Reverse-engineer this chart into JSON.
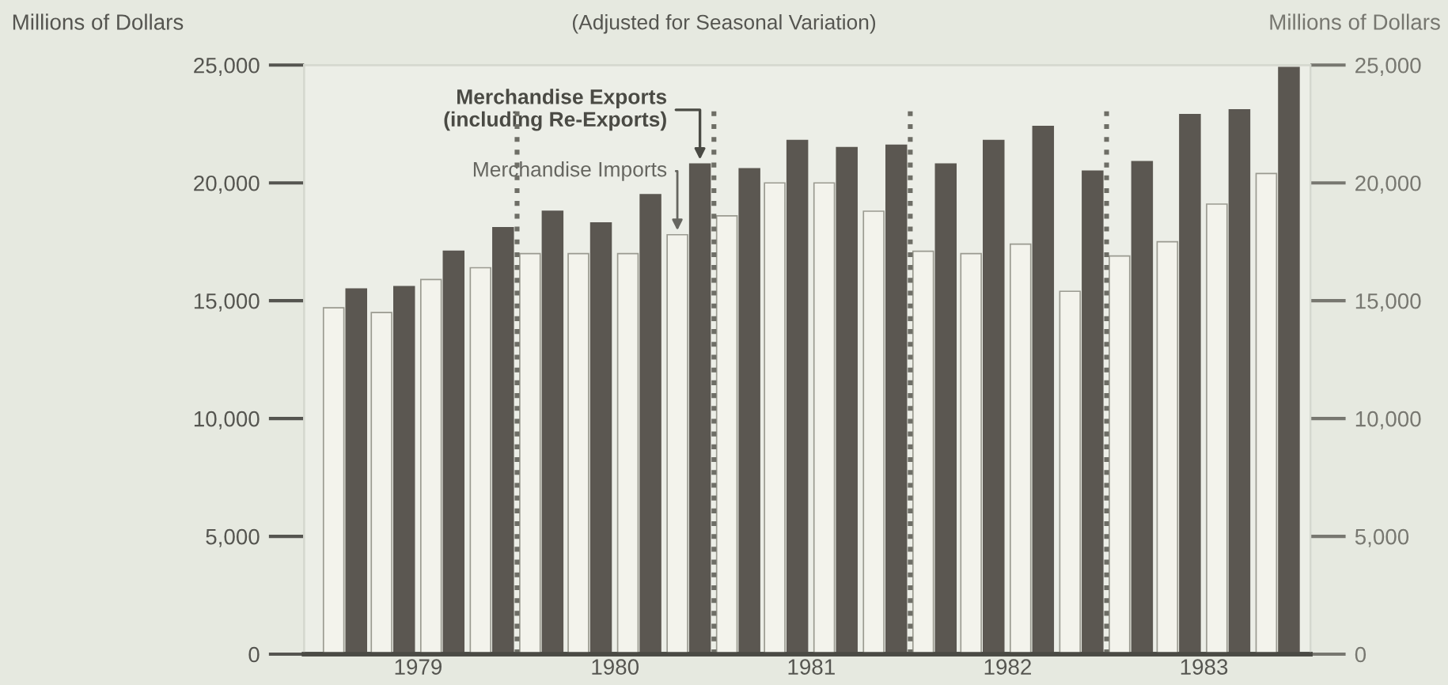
{
  "chart_data": {
    "type": "bar",
    "subtitle": "(Adjusted for Seasonal Variation)",
    "ylabel": "Millions of Dollars",
    "y2label": "Millions of Dollars",
    "x": [
      "1979-02-15",
      "1979-05-15",
      "1979-08-15",
      "1979-11-15",
      "1980-02-15",
      "1980-05-15",
      "1980-08-15",
      "1980-11-15",
      "1981-02-15",
      "1981-05-15",
      "1981-08-15",
      "1981-11-15",
      "1982-02-15",
      "1982-05-15",
      "1982-08-15",
      "1982-11-15",
      "1983-02-15",
      "1983-05-15",
      "1983-08-15",
      "1983-11-15"
    ],
    "series": [
      {
        "name": "Merchandise Imports",
        "color": "#f3f3ec",
        "values": [
          14700,
          14500,
          15900,
          16400,
          17000,
          17000,
          17000,
          17800,
          18600,
          20000,
          20000,
          18800,
          17100,
          17000,
          17400,
          15400,
          16900,
          17500,
          19100,
          20400
        ]
      },
      {
        "name": "Merchandise Exports (including Re-Exports)",
        "color": "#5b5751",
        "values": [
          15500,
          15600,
          17100,
          18100,
          18800,
          18300,
          19500,
          20800,
          20600,
          21800,
          21500,
          21600,
          20800,
          21800,
          22400,
          20500,
          20900,
          22900,
          23100,
          24900
        ]
      }
    ],
    "xlim": [
      "1978-12-01",
      "1984-01-15"
    ],
    "xticks": [
      {
        "value": "1979-07-01",
        "label": "1979"
      },
      {
        "value": "1980-07-01",
        "label": "1980"
      },
      {
        "value": "1981-07-01",
        "label": "1981"
      },
      {
        "value": "1982-07-01",
        "label": "1982"
      },
      {
        "value": "1983-07-01",
        "label": "1983"
      }
    ],
    "ylim": [
      0,
      25000
    ],
    "yticks": [
      {
        "value": 0,
        "label": "0"
      },
      {
        "value": 5000,
        "label": "5,000"
      },
      {
        "value": 10000,
        "label": "10,000"
      },
      {
        "value": 15000,
        "label": "15,000"
      },
      {
        "value": 20000,
        "label": "20,000"
      },
      {
        "value": 25000,
        "label": "25,000"
      }
    ],
    "y2lim": [
      0,
      25000
    ],
    "y2ticks": [
      {
        "value": 0,
        "label": "0"
      },
      {
        "value": 5000,
        "label": "5,000"
      },
      {
        "value": 10000,
        "label": "10,000"
      },
      {
        "value": 15000,
        "label": "15,000"
      },
      {
        "value": 20000,
        "label": "20,000"
      },
      {
        "value": 25000,
        "label": "25,000"
      }
    ],
    "ref_lines": [
      {
        "axis": "x",
        "value": "1980-01-01",
        "color": "#6e6e66",
        "line_style": "dotted"
      },
      {
        "axis": "x",
        "value": "1981-01-01",
        "color": "#6e6e66",
        "line_style": "dotted"
      },
      {
        "axis": "x",
        "value": "1982-01-01",
        "color": "#6e6e66",
        "line_style": "dotted"
      },
      {
        "axis": "x",
        "value": "1983-01-01",
        "color": "#6e6e66",
        "line_style": "dotted"
      }
    ],
    "grid": false,
    "legend": false
  }
}
